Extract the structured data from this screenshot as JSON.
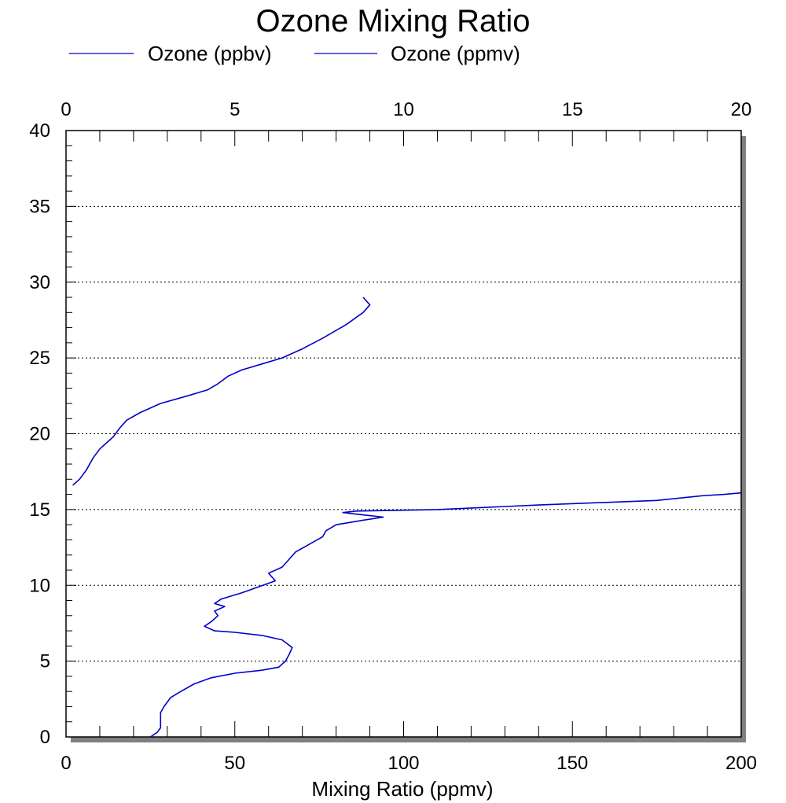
{
  "chart_data": {
    "type": "line",
    "title": "Ozone Mixing Ratio",
    "xlabel": "Mixing Ratio (ppmv)",
    "ylabel": "",
    "xlim_bottom": [
      0,
      200
    ],
    "xlim_top": [
      0,
      20
    ],
    "ylim": [
      0,
      40
    ],
    "x_ticks_bottom": [
      "0",
      "50",
      "100",
      "150",
      "200"
    ],
    "x_ticks_top": [
      "0",
      "5",
      "10",
      "15",
      "20"
    ],
    "y_ticks": [
      "0",
      "5",
      "10",
      "15",
      "20",
      "25",
      "30",
      "35",
      "40"
    ],
    "grid": "horizontal-dotted",
    "legend_placement": "top",
    "colors": {
      "series": "#0000cc",
      "shadow": "#808080",
      "grid": "#000000"
    },
    "series": [
      {
        "name": "Ozone (ppbv)",
        "axis": "bottom",
        "points": [
          [
            25,
            0
          ],
          [
            27,
            0.3
          ],
          [
            28,
            0.6
          ],
          [
            28,
            1.0
          ],
          [
            28,
            1.6
          ],
          [
            29,
            2.0
          ],
          [
            31,
            2.6
          ],
          [
            34,
            3.0
          ],
          [
            38,
            3.5
          ],
          [
            43,
            3.9
          ],
          [
            50,
            4.2
          ],
          [
            58,
            4.4
          ],
          [
            63,
            4.6
          ],
          [
            65,
            5.0
          ],
          [
            66,
            5.4
          ],
          [
            67,
            5.9
          ],
          [
            64,
            6.4
          ],
          [
            58,
            6.7
          ],
          [
            50,
            6.9
          ],
          [
            44,
            7.0
          ],
          [
            41,
            7.3
          ],
          [
            43,
            7.6
          ],
          [
            45,
            8.0
          ],
          [
            44,
            8.3
          ],
          [
            47,
            8.6
          ],
          [
            44,
            8.8
          ],
          [
            46,
            9.1
          ],
          [
            52,
            9.5
          ],
          [
            57,
            9.9
          ],
          [
            62,
            10.3
          ],
          [
            60,
            10.8
          ],
          [
            64,
            11.2
          ],
          [
            66,
            11.7
          ],
          [
            68,
            12.2
          ],
          [
            72,
            12.7
          ],
          [
            76,
            13.2
          ],
          [
            77,
            13.6
          ],
          [
            80,
            14.0
          ],
          [
            88,
            14.3
          ],
          [
            94,
            14.5
          ],
          [
            86,
            14.7
          ],
          [
            82,
            14.8
          ],
          [
            86,
            14.9
          ],
          [
            110,
            15.0
          ],
          [
            140,
            15.3
          ],
          [
            175,
            15.6
          ],
          [
            188,
            15.9
          ],
          [
            195,
            16.0
          ],
          [
            200,
            16.1
          ]
        ]
      },
      {
        "name": "Ozone (ppmv)",
        "axis": "top",
        "points": [
          [
            0.2,
            16.6
          ],
          [
            0.4,
            17.0
          ],
          [
            0.6,
            17.6
          ],
          [
            0.8,
            18.4
          ],
          [
            1.0,
            19.0
          ],
          [
            1.2,
            19.4
          ],
          [
            1.4,
            19.8
          ],
          [
            1.6,
            20.4
          ],
          [
            1.8,
            20.9
          ],
          [
            2.2,
            21.4
          ],
          [
            2.8,
            22.0
          ],
          [
            3.6,
            22.5
          ],
          [
            4.2,
            22.9
          ],
          [
            4.5,
            23.3
          ],
          [
            4.8,
            23.8
          ],
          [
            5.2,
            24.2
          ],
          [
            5.8,
            24.6
          ],
          [
            6.4,
            25.0
          ],
          [
            7.0,
            25.6
          ],
          [
            7.6,
            26.3
          ],
          [
            8.3,
            27.2
          ],
          [
            8.8,
            28.0
          ],
          [
            9.0,
            28.5
          ],
          [
            8.8,
            29.0
          ]
        ]
      }
    ]
  }
}
